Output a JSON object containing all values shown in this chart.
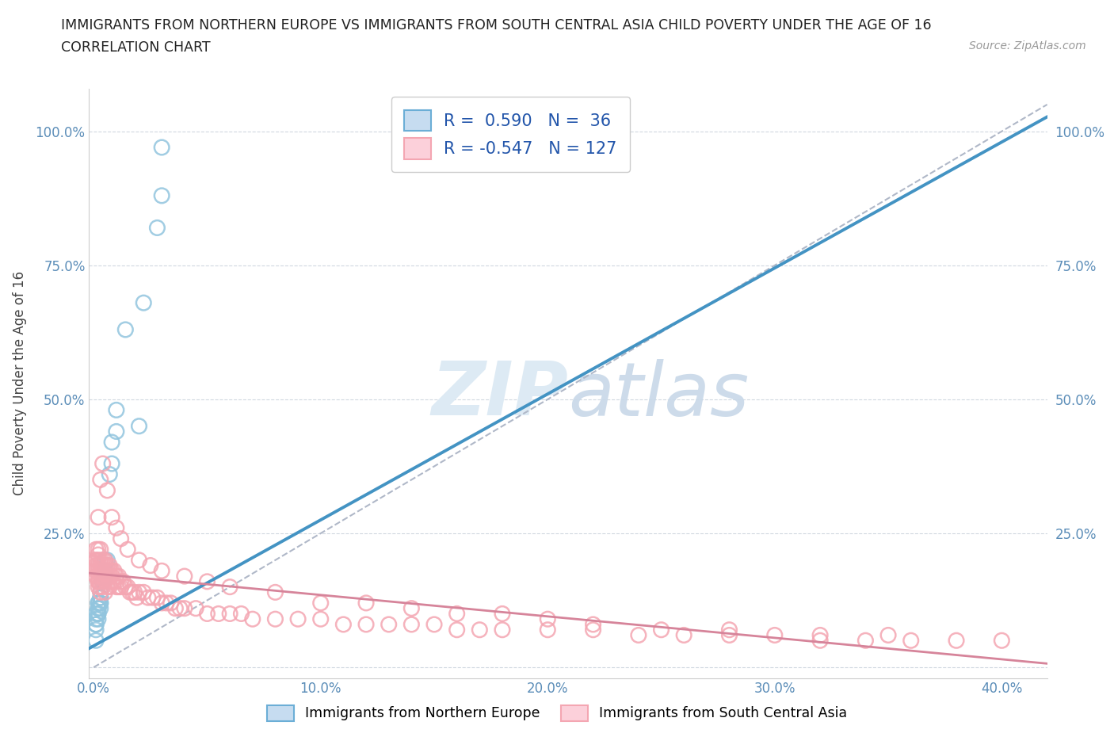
{
  "title_line1": "IMMIGRANTS FROM NORTHERN EUROPE VS IMMIGRANTS FROM SOUTH CENTRAL ASIA CHILD POVERTY UNDER THE AGE OF 16",
  "title_line2": "CORRELATION CHART",
  "source": "Source: ZipAtlas.com",
  "ylabel": "Child Poverty Under the Age of 16",
  "xlim": [
    -0.002,
    0.42
  ],
  "ylim": [
    -0.02,
    1.08
  ],
  "xticks": [
    0.0,
    0.1,
    0.2,
    0.3,
    0.4
  ],
  "yticks": [
    0.0,
    0.25,
    0.5,
    0.75,
    1.0
  ],
  "ytick_labels": [
    "",
    "25.0%",
    "50.0%",
    "75.0%",
    "100.0%"
  ],
  "xtick_labels": [
    "0.0%",
    "10.0%",
    "20.0%",
    "30.0%",
    "40.0%"
  ],
  "blue_R": 0.59,
  "blue_N": 36,
  "pink_R": -0.547,
  "pink_N": 127,
  "blue_color": "#92c5de",
  "pink_color": "#f4a6b2",
  "blue_line_color": "#4393c3",
  "pink_line_color": "#d6849a",
  "background_color": "#ffffff",
  "watermark_color": "#ddeaf4",
  "legend_label_blue": "Immigrants from Northern Europe",
  "legend_label_pink": "Immigrants from South Central Asia",
  "blue_scatter_x": [
    0.03,
    0.03,
    0.028,
    0.022,
    0.014,
    0.01,
    0.01,
    0.008,
    0.008,
    0.007,
    0.006,
    0.005,
    0.005,
    0.005,
    0.004,
    0.004,
    0.003,
    0.003,
    0.003,
    0.003,
    0.003,
    0.003,
    0.002,
    0.002,
    0.002,
    0.002,
    0.002,
    0.002,
    0.002,
    0.001,
    0.001,
    0.001,
    0.001,
    0.001,
    0.001,
    0.02
  ],
  "blue_scatter_y": [
    0.97,
    0.88,
    0.82,
    0.68,
    0.63,
    0.48,
    0.44,
    0.42,
    0.38,
    0.36,
    0.2,
    0.2,
    0.18,
    0.17,
    0.16,
    0.16,
    0.14,
    0.13,
    0.13,
    0.12,
    0.12,
    0.11,
    0.12,
    0.12,
    0.11,
    0.11,
    0.1,
    0.1,
    0.09,
    0.1,
    0.09,
    0.08,
    0.08,
    0.07,
    0.05,
    0.45
  ],
  "pink_scatter_x": [
    0.001,
    0.001,
    0.001,
    0.001,
    0.001,
    0.001,
    0.002,
    0.002,
    0.002,
    0.002,
    0.002,
    0.002,
    0.002,
    0.002,
    0.002,
    0.003,
    0.003,
    0.003,
    0.003,
    0.003,
    0.003,
    0.003,
    0.003,
    0.004,
    0.004,
    0.004,
    0.004,
    0.004,
    0.004,
    0.005,
    0.005,
    0.005,
    0.005,
    0.005,
    0.005,
    0.006,
    0.006,
    0.006,
    0.006,
    0.007,
    0.007,
    0.007,
    0.007,
    0.008,
    0.008,
    0.008,
    0.009,
    0.009,
    0.01,
    0.01,
    0.01,
    0.011,
    0.011,
    0.012,
    0.012,
    0.013,
    0.014,
    0.015,
    0.016,
    0.017,
    0.018,
    0.019,
    0.02,
    0.022,
    0.024,
    0.026,
    0.028,
    0.03,
    0.032,
    0.034,
    0.036,
    0.038,
    0.04,
    0.045,
    0.05,
    0.055,
    0.06,
    0.065,
    0.07,
    0.08,
    0.09,
    0.1,
    0.11,
    0.12,
    0.13,
    0.14,
    0.15,
    0.16,
    0.17,
    0.18,
    0.2,
    0.22,
    0.24,
    0.26,
    0.28,
    0.3,
    0.32,
    0.34,
    0.36,
    0.38,
    0.4,
    0.35,
    0.32,
    0.28,
    0.25,
    0.22,
    0.2,
    0.18,
    0.16,
    0.14,
    0.12,
    0.1,
    0.08,
    0.06,
    0.05,
    0.04,
    0.03,
    0.025,
    0.02,
    0.015,
    0.012,
    0.01,
    0.008,
    0.006,
    0.004,
    0.003,
    0.002
  ],
  "pink_scatter_y": [
    0.22,
    0.2,
    0.2,
    0.19,
    0.18,
    0.17,
    0.22,
    0.21,
    0.2,
    0.19,
    0.18,
    0.17,
    0.16,
    0.16,
    0.15,
    0.22,
    0.2,
    0.19,
    0.18,
    0.17,
    0.16,
    0.15,
    0.14,
    0.2,
    0.19,
    0.18,
    0.17,
    0.16,
    0.15,
    0.2,
    0.19,
    0.18,
    0.17,
    0.16,
    0.14,
    0.19,
    0.18,
    0.17,
    0.15,
    0.19,
    0.18,
    0.17,
    0.15,
    0.18,
    0.17,
    0.16,
    0.18,
    0.16,
    0.17,
    0.16,
    0.15,
    0.17,
    0.15,
    0.16,
    0.15,
    0.16,
    0.15,
    0.15,
    0.14,
    0.14,
    0.14,
    0.13,
    0.14,
    0.14,
    0.13,
    0.13,
    0.13,
    0.12,
    0.12,
    0.12,
    0.11,
    0.11,
    0.11,
    0.11,
    0.1,
    0.1,
    0.1,
    0.1,
    0.09,
    0.09,
    0.09,
    0.09,
    0.08,
    0.08,
    0.08,
    0.08,
    0.08,
    0.07,
    0.07,
    0.07,
    0.07,
    0.07,
    0.06,
    0.06,
    0.06,
    0.06,
    0.05,
    0.05,
    0.05,
    0.05,
    0.05,
    0.06,
    0.06,
    0.07,
    0.07,
    0.08,
    0.09,
    0.1,
    0.1,
    0.11,
    0.12,
    0.12,
    0.14,
    0.15,
    0.16,
    0.17,
    0.18,
    0.19,
    0.2,
    0.22,
    0.24,
    0.26,
    0.28,
    0.33,
    0.38,
    0.35,
    0.28
  ]
}
